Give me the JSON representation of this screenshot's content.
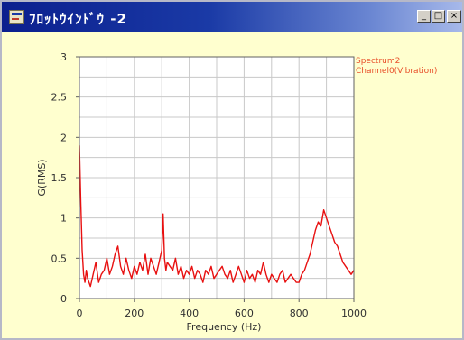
{
  "window": {
    "title": "ﾌﾛｯﾄｳｲﾝﾄﾞｳ -2",
    "minimize_symbol": "_",
    "maximize_symbol": "□",
    "close_symbol": "×"
  },
  "colors": {
    "series": "#e81010",
    "legend_text": "#e8502a",
    "plot_background": "#ffffff",
    "window_background": "#ffffcf"
  },
  "legend": {
    "items": [
      "Spectrum2",
      "Channel0(Vibration)"
    ]
  },
  "chart_data": {
    "type": "line",
    "xlabel": "Frequency  (Hz)",
    "ylabel": "G(RMS)",
    "xlim": [
      0,
      1000
    ],
    "ylim": [
      0,
      3
    ],
    "grid": true,
    "legend_position": "top-right outside",
    "x_ticks": [
      "0",
      "200",
      "400",
      "600",
      "800",
      "1000"
    ],
    "y_ticks": [
      "0",
      "0.5",
      "1",
      "1.5",
      "2",
      "2.5",
      "3"
    ],
    "series": [
      {
        "name": "Channel0(Vibration)",
        "x": [
          0,
          5,
          10,
          15,
          20,
          25,
          30,
          40,
          50,
          60,
          70,
          80,
          90,
          100,
          110,
          120,
          130,
          140,
          150,
          160,
          170,
          180,
          190,
          200,
          210,
          220,
          230,
          240,
          250,
          260,
          270,
          280,
          290,
          300,
          305,
          310,
          315,
          320,
          330,
          340,
          350,
          360,
          370,
          380,
          390,
          400,
          410,
          420,
          430,
          440,
          450,
          460,
          470,
          480,
          490,
          500,
          510,
          520,
          530,
          540,
          550,
          560,
          570,
          580,
          590,
          600,
          610,
          620,
          630,
          640,
          650,
          660,
          670,
          680,
          690,
          700,
          710,
          720,
          730,
          740,
          750,
          760,
          770,
          780,
          790,
          800,
          810,
          820,
          830,
          840,
          850,
          860,
          870,
          880,
          890,
          900,
          910,
          920,
          930,
          940,
          950,
          960,
          970,
          980,
          990,
          1000
        ],
        "values": [
          1.9,
          1.2,
          0.6,
          0.3,
          0.2,
          0.35,
          0.25,
          0.15,
          0.3,
          0.45,
          0.2,
          0.3,
          0.35,
          0.5,
          0.3,
          0.4,
          0.55,
          0.65,
          0.4,
          0.3,
          0.5,
          0.35,
          0.25,
          0.4,
          0.3,
          0.45,
          0.35,
          0.55,
          0.3,
          0.5,
          0.4,
          0.3,
          0.45,
          0.6,
          1.05,
          0.5,
          0.35,
          0.45,
          0.4,
          0.35,
          0.5,
          0.3,
          0.4,
          0.25,
          0.35,
          0.3,
          0.4,
          0.25,
          0.35,
          0.3,
          0.2,
          0.35,
          0.3,
          0.4,
          0.25,
          0.3,
          0.35,
          0.4,
          0.3,
          0.25,
          0.35,
          0.2,
          0.3,
          0.4,
          0.3,
          0.2,
          0.35,
          0.25,
          0.3,
          0.2,
          0.35,
          0.3,
          0.45,
          0.3,
          0.2,
          0.3,
          0.25,
          0.2,
          0.3,
          0.35,
          0.2,
          0.25,
          0.3,
          0.25,
          0.2,
          0.2,
          0.3,
          0.35,
          0.45,
          0.55,
          0.7,
          0.85,
          0.95,
          0.9,
          1.1,
          1.0,
          0.9,
          0.8,
          0.7,
          0.65,
          0.55,
          0.45,
          0.4,
          0.35,
          0.3,
          0.35
        ]
      }
    ]
  }
}
